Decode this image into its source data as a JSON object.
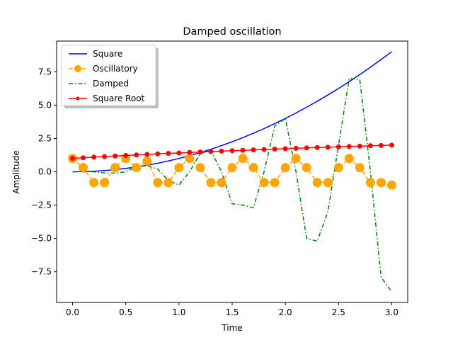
{
  "chart_data": {
    "type": "line",
    "title": "Damped oscillation",
    "xlabel": "Time",
    "ylabel": "Amplitude",
    "xlim": [
      -0.15,
      3.15
    ],
    "ylim": [
      -9.8,
      9.8
    ],
    "x_ticks": [
      0.0,
      0.5,
      1.0,
      1.5,
      2.0,
      2.5,
      3.0
    ],
    "x_tick_labels": [
      "0.0",
      "0.5",
      "1.0",
      "1.5",
      "2.0",
      "2.5",
      "3.0"
    ],
    "y_ticks": [
      -7.5,
      -5.0,
      -2.5,
      0.0,
      2.5,
      5.0,
      7.5
    ],
    "y_tick_labels": [
      "−7.5",
      "−5.0",
      "−2.5",
      "0.0",
      "2.5",
      "5.0",
      "7.5"
    ],
    "grid": false,
    "legend_position": "upper left",
    "x": [
      0.0,
      0.1,
      0.2,
      0.3,
      0.4,
      0.5,
      0.6,
      0.7,
      0.8,
      0.9,
      1.0,
      1.1,
      1.2,
      1.3,
      1.4,
      1.5,
      1.6,
      1.7,
      1.8,
      1.9,
      2.0,
      2.1,
      2.2,
      2.3,
      2.4,
      2.5,
      2.6,
      2.7,
      2.8,
      2.9,
      3.0
    ],
    "series": [
      {
        "name": "Square",
        "color": "#0000ff",
        "linestyle": "solid",
        "marker": "none",
        "values": [
          0.0,
          0.01,
          0.04,
          0.09,
          0.16,
          0.25,
          0.36,
          0.49,
          0.64,
          0.81,
          1.0,
          1.21,
          1.44,
          1.69,
          1.96,
          2.25,
          2.56,
          2.89,
          3.24,
          3.61,
          4.0,
          4.41,
          4.84,
          5.29,
          5.76,
          6.25,
          6.76,
          7.29,
          7.84,
          8.41,
          9.0
        ]
      },
      {
        "name": "Oscillatory",
        "color": "#ffa500",
        "linestyle": "dashed",
        "marker": "circle",
        "values": [
          1.0,
          0.31,
          -0.81,
          -0.81,
          0.31,
          1.0,
          0.31,
          0.81,
          -0.81,
          -0.81,
          0.31,
          1.0,
          0.31,
          -0.81,
          -0.81,
          0.31,
          1.0,
          0.31,
          -0.81,
          -0.81,
          0.31,
          1.0,
          0.31,
          -0.81,
          -0.81,
          0.31,
          1.0,
          0.31,
          -0.81,
          -0.81,
          -1.0
        ]
      },
      {
        "name": "Damped",
        "color": "#008000",
        "linestyle": "dashdot",
        "marker": "none",
        "values": [
          0.0,
          0.003,
          0.0,
          -0.09,
          -0.1,
          0.0,
          0.36,
          0.46,
          0.2,
          -0.65,
          -1.0,
          0.0,
          1.37,
          1.6,
          0.0,
          -2.4,
          -2.5,
          -2.7,
          0.0,
          3.43,
          4.0,
          0.0,
          -5.0,
          -5.2,
          -3.0,
          2.0,
          7.0,
          6.9,
          0.0,
          -7.9,
          -9.0
        ]
      },
      {
        "name": "Square Root",
        "color": "#ff0000",
        "linestyle": "solid",
        "marker": "dot",
        "values": [
          1.0,
          1.05,
          1.1,
          1.14,
          1.18,
          1.22,
          1.26,
          1.3,
          1.34,
          1.38,
          1.41,
          1.45,
          1.48,
          1.52,
          1.55,
          1.58,
          1.61,
          1.64,
          1.67,
          1.7,
          1.73,
          1.76,
          1.79,
          1.82,
          1.84,
          1.87,
          1.9,
          1.92,
          1.95,
          1.97,
          2.0
        ]
      }
    ]
  }
}
